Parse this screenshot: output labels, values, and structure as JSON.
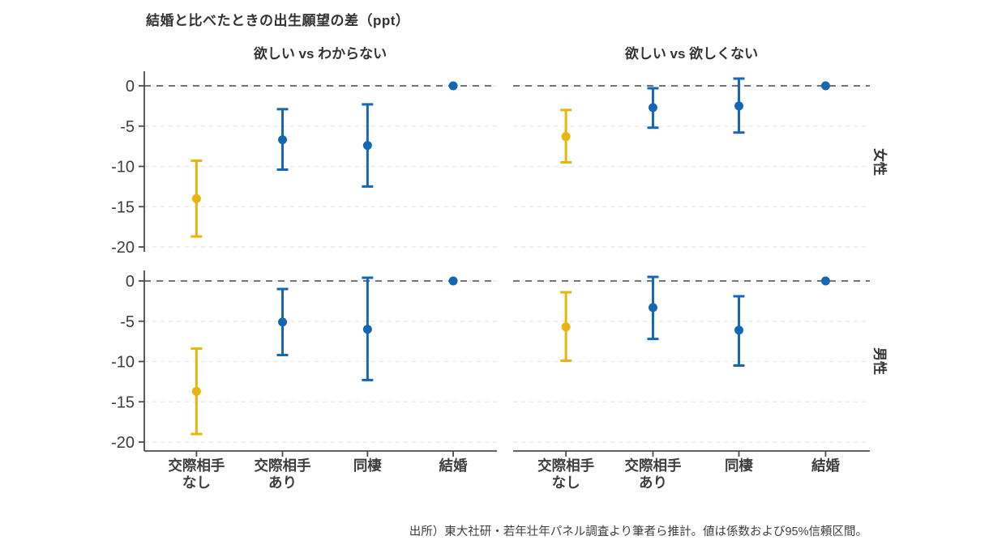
{
  "title": "結婚と比べたときの出生願望の差（ppt）",
  "source_note": "出所）東大社研・若年壮年パネル調査より筆者ら推計。値は係数および95%信頼区間。",
  "chart_data": {
    "type": "errorbar",
    "title": "結婚と比べたときの出生願望の差（ppt）",
    "column_facets": [
      "欲しい vs わからない",
      "欲しい vs 欲しくない"
    ],
    "row_facets": [
      "女性",
      "男性"
    ],
    "categories": [
      "交際相手\nなし",
      "交際相手\nあり",
      "同棲",
      "結婚"
    ],
    "yticks": [
      0,
      -5,
      -10,
      -15,
      -20
    ],
    "ylim": [
      1.8,
      -21.1
    ],
    "unit": "ppt",
    "zero_line": "dashed",
    "grid": "dashed-light",
    "legend": "none",
    "colors": {
      "blue": "#1467B2",
      "yellow": "#E9B40C",
      "zero_line": "#757575",
      "grid": "#e8e8e8",
      "axis": "#4b4b4b",
      "text": "#3d3d3d"
    },
    "panels": [
      {
        "row": "女性",
        "column": "欲しい vs わからない",
        "points": [
          {
            "category": "交際相手なし",
            "value": -14.0,
            "ci_low": -18.7,
            "ci_high": -9.3,
            "color": "yellow"
          },
          {
            "category": "交際相手あり",
            "value": -6.7,
            "ci_low": -10.4,
            "ci_high": -2.9,
            "color": "blue"
          },
          {
            "category": "同棲",
            "value": -7.4,
            "ci_low": -12.5,
            "ci_high": -2.3,
            "color": "blue"
          },
          {
            "category": "結婚",
            "value": 0,
            "ci_low": null,
            "ci_high": null,
            "color": "blue"
          }
        ]
      },
      {
        "row": "女性",
        "column": "欲しい vs 欲しくない",
        "points": [
          {
            "category": "交際相手なし",
            "value": -6.3,
            "ci_low": -9.5,
            "ci_high": -3.0,
            "color": "yellow"
          },
          {
            "category": "交際相手あり",
            "value": -2.7,
            "ci_low": -5.2,
            "ci_high": -0.3,
            "color": "blue"
          },
          {
            "category": "同棲",
            "value": -2.5,
            "ci_low": -5.8,
            "ci_high": 0.9,
            "color": "blue"
          },
          {
            "category": "結婚",
            "value": 0,
            "ci_low": null,
            "ci_high": null,
            "color": "blue"
          }
        ]
      },
      {
        "row": "男性",
        "column": "欲しい vs わからない",
        "points": [
          {
            "category": "交際相手なし",
            "value": -13.7,
            "ci_low": -19.0,
            "ci_high": -8.4,
            "color": "yellow"
          },
          {
            "category": "交際相手あり",
            "value": -5.1,
            "ci_low": -9.2,
            "ci_high": -1.0,
            "color": "blue"
          },
          {
            "category": "同棲",
            "value": -6.0,
            "ci_low": -12.3,
            "ci_high": 0.4,
            "color": "blue"
          },
          {
            "category": "結婚",
            "value": 0,
            "ci_low": null,
            "ci_high": null,
            "color": "blue"
          }
        ]
      },
      {
        "row": "男性",
        "column": "欲しい vs 欲しくない",
        "points": [
          {
            "category": "交際相手なし",
            "value": -5.7,
            "ci_low": -9.9,
            "ci_high": -1.4,
            "color": "yellow"
          },
          {
            "category": "交際相手あり",
            "value": -3.3,
            "ci_low": -7.2,
            "ci_high": 0.5,
            "color": "blue"
          },
          {
            "category": "同棲",
            "value": -6.1,
            "ci_low": -10.5,
            "ci_high": -1.9,
            "color": "blue"
          },
          {
            "category": "結婚",
            "value": 0,
            "ci_low": null,
            "ci_high": null,
            "color": "blue"
          }
        ]
      }
    ]
  }
}
